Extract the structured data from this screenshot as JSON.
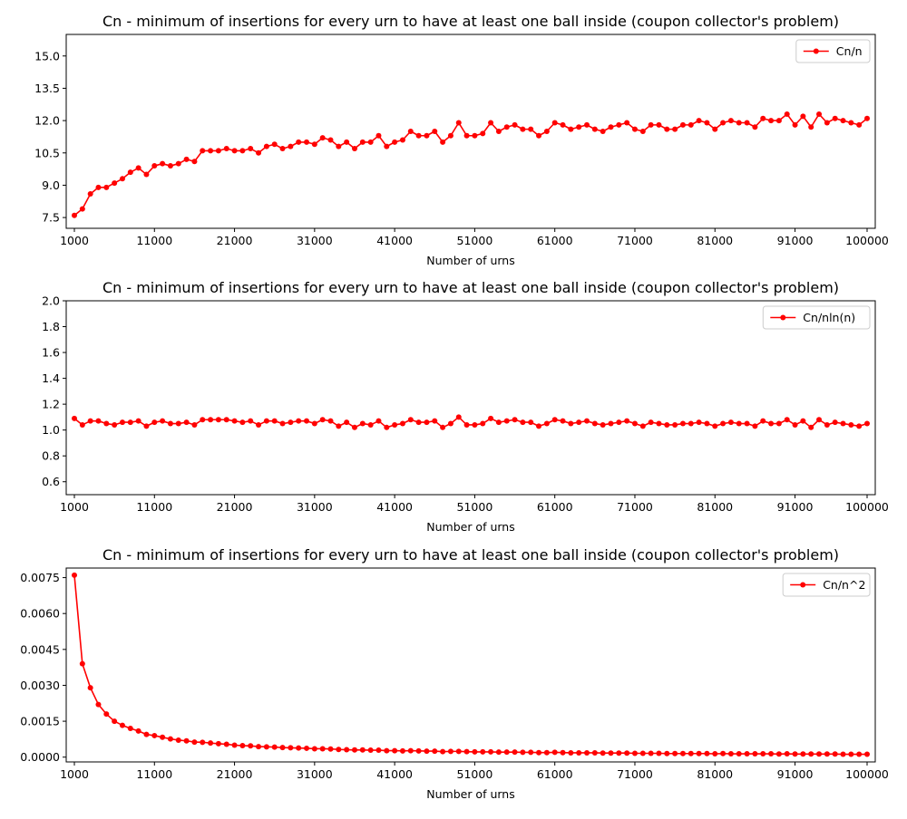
{
  "chart_data": [
    {
      "type": "line",
      "title": "Cn - minimum of insertions for every urn to have at least one ball inside (coupon collector's problem)",
      "xlabel": "Number of urns",
      "ylabel": "",
      "xlim": [
        1000,
        100000
      ],
      "ylim": [
        7.0,
        16.0
      ],
      "xticks": [
        1000,
        11000,
        21000,
        31000,
        41000,
        51000,
        61000,
        71000,
        81000,
        91000,
        100000
      ],
      "xtick_labels": [
        "1000",
        "11000",
        "21000",
        "31000",
        "41000",
        "51000",
        "61000",
        "71000",
        "81000",
        "91000",
        "100000"
      ],
      "yticks": [
        7.5,
        9.0,
        10.5,
        12.0,
        13.5,
        15.0
      ],
      "ytick_labels": [
        "7.5",
        "9.0",
        "10.5",
        "12.0",
        "13.5",
        "15.0"
      ],
      "legend_position": "top-right",
      "series": [
        {
          "name": "Cn/n",
          "color": "#ff0000",
          "x_start": 1000,
          "x_step": 1000,
          "values": [
            7.6,
            7.9,
            8.6,
            8.9,
            8.9,
            9.1,
            9.3,
            9.6,
            9.8,
            9.5,
            9.9,
            10.0,
            9.9,
            10.0,
            10.2,
            10.1,
            10.6,
            10.6,
            10.6,
            10.7,
            10.6,
            10.6,
            10.7,
            10.5,
            10.8,
            10.9,
            10.7,
            10.8,
            11.0,
            11.0,
            10.9,
            11.2,
            11.1,
            10.8,
            11.0,
            10.7,
            11.0,
            11.0,
            11.3,
            10.8,
            11.0,
            11.1,
            11.5,
            11.3,
            11.3,
            11.5,
            11.0,
            11.3,
            11.9,
            11.3,
            11.3,
            11.4,
            11.9,
            11.5,
            11.7,
            11.8,
            11.6,
            11.6,
            11.3,
            11.5,
            11.9,
            11.8,
            11.6,
            11.7,
            11.8,
            11.6,
            11.5,
            11.7,
            11.8,
            11.9,
            11.6,
            11.5,
            11.8,
            11.8,
            11.6,
            11.6,
            11.8,
            11.8,
            12.0,
            11.9,
            11.6,
            11.9,
            12.0,
            11.9,
            11.9,
            11.7,
            12.1,
            12.0,
            12.0,
            12.3,
            11.8,
            12.2,
            11.7,
            12.3,
            11.9,
            12.1,
            12.0,
            11.9,
            11.8,
            12.1
          ]
        }
      ]
    },
    {
      "type": "line",
      "title": "Cn - minimum of insertions for every urn to have at least one ball inside (coupon collector's problem)",
      "xlabel": "Number of urns",
      "ylabel": "",
      "xlim": [
        1000,
        100000
      ],
      "ylim": [
        0.5,
        2.0
      ],
      "xticks": [
        1000,
        11000,
        21000,
        31000,
        41000,
        51000,
        61000,
        71000,
        81000,
        91000,
        100000
      ],
      "xtick_labels": [
        "1000",
        "11000",
        "21000",
        "31000",
        "41000",
        "51000",
        "61000",
        "71000",
        "81000",
        "91000",
        "100000"
      ],
      "yticks": [
        0.6,
        0.8,
        1.0,
        1.2,
        1.4,
        1.6,
        1.8,
        2.0
      ],
      "ytick_labels": [
        "0.6",
        "0.8",
        "1.0",
        "1.2",
        "1.4",
        "1.6",
        "1.8",
        "2.0"
      ],
      "legend_position": "top-right",
      "series": [
        {
          "name": "Cn/nln(n)",
          "color": "#ff0000",
          "x_start": 1000,
          "x_step": 1000,
          "values": [
            1.09,
            1.04,
            1.07,
            1.07,
            1.05,
            1.04,
            1.06,
            1.06,
            1.07,
            1.03,
            1.06,
            1.07,
            1.05,
            1.05,
            1.06,
            1.04,
            1.08,
            1.08,
            1.08,
            1.08,
            1.07,
            1.06,
            1.07,
            1.04,
            1.07,
            1.07,
            1.05,
            1.06,
            1.07,
            1.07,
            1.05,
            1.08,
            1.07,
            1.03,
            1.06,
            1.02,
            1.05,
            1.04,
            1.07,
            1.02,
            1.04,
            1.05,
            1.08,
            1.06,
            1.06,
            1.07,
            1.02,
            1.05,
            1.1,
            1.04,
            1.04,
            1.05,
            1.09,
            1.06,
            1.07,
            1.08,
            1.06,
            1.06,
            1.03,
            1.05,
            1.08,
            1.07,
            1.05,
            1.06,
            1.07,
            1.05,
            1.04,
            1.05,
            1.06,
            1.07,
            1.05,
            1.03,
            1.06,
            1.05,
            1.04,
            1.04,
            1.05,
            1.05,
            1.06,
            1.05,
            1.03,
            1.05,
            1.06,
            1.05,
            1.05,
            1.03,
            1.07,
            1.05,
            1.05,
            1.08,
            1.04,
            1.07,
            1.02,
            1.08,
            1.04,
            1.06,
            1.05,
            1.04,
            1.03,
            1.05
          ]
        }
      ]
    },
    {
      "type": "line",
      "title": "Cn - minimum of insertions for every urn to have at least one ball inside (coupon collector's problem)",
      "xlabel": "Number of urns",
      "ylabel": "",
      "xlim": [
        1000,
        100000
      ],
      "ylim": [
        -0.0002,
        0.0079
      ],
      "xticks": [
        1000,
        11000,
        21000,
        31000,
        41000,
        51000,
        61000,
        71000,
        81000,
        91000,
        100000
      ],
      "xtick_labels": [
        "1000",
        "11000",
        "21000",
        "31000",
        "41000",
        "51000",
        "61000",
        "71000",
        "81000",
        "91000",
        "100000"
      ],
      "yticks": [
        0.0,
        0.0015,
        0.003,
        0.0045,
        0.006,
        0.0075
      ],
      "ytick_labels": [
        "0.0000",
        "0.0015",
        "0.0030",
        "0.0045",
        "0.0060",
        "0.0075"
      ],
      "legend_position": "top-right",
      "series": [
        {
          "name": "Cn/n^2",
          "color": "#ff0000",
          "x_start": 1000,
          "x_step": 1000,
          "values": [
            0.0076,
            0.0039,
            0.0029,
            0.0022,
            0.0018,
            0.0015,
            0.00133,
            0.0012,
            0.00109,
            0.00095,
            0.0009,
            0.00083,
            0.00076,
            0.00071,
            0.00068,
            0.00063,
            0.00062,
            0.00059,
            0.00056,
            0.00054,
            0.0005,
            0.00048,
            0.00047,
            0.00044,
            0.00043,
            0.00042,
            0.0004,
            0.00039,
            0.00038,
            0.00037,
            0.00035,
            0.00035,
            0.00034,
            0.00032,
            0.00031,
            0.0003,
            0.0003,
            0.00029,
            0.00029,
            0.00027,
            0.00027,
            0.00026,
            0.00027,
            0.00026,
            0.00025,
            0.00025,
            0.00023,
            0.00024,
            0.00024,
            0.00023,
            0.00022,
            0.00022,
            0.00022,
            0.00021,
            0.00021,
            0.00021,
            0.0002,
            0.0002,
            0.00019,
            0.00019,
            0.0002,
            0.00019,
            0.00018,
            0.00018,
            0.00018,
            0.00018,
            0.00017,
            0.00017,
            0.00017,
            0.00017,
            0.00016,
            0.00016,
            0.00016,
            0.00016,
            0.00015,
            0.00015,
            0.00015,
            0.00015,
            0.00015,
            0.00015,
            0.00014,
            0.00015,
            0.00014,
            0.00014,
            0.00014,
            0.00014,
            0.00014,
            0.00014,
            0.00013,
            0.00014,
            0.00013,
            0.00013,
            0.00013,
            0.00013,
            0.00013,
            0.00013,
            0.00012,
            0.00012,
            0.00012,
            0.00012
          ]
        }
      ]
    }
  ]
}
